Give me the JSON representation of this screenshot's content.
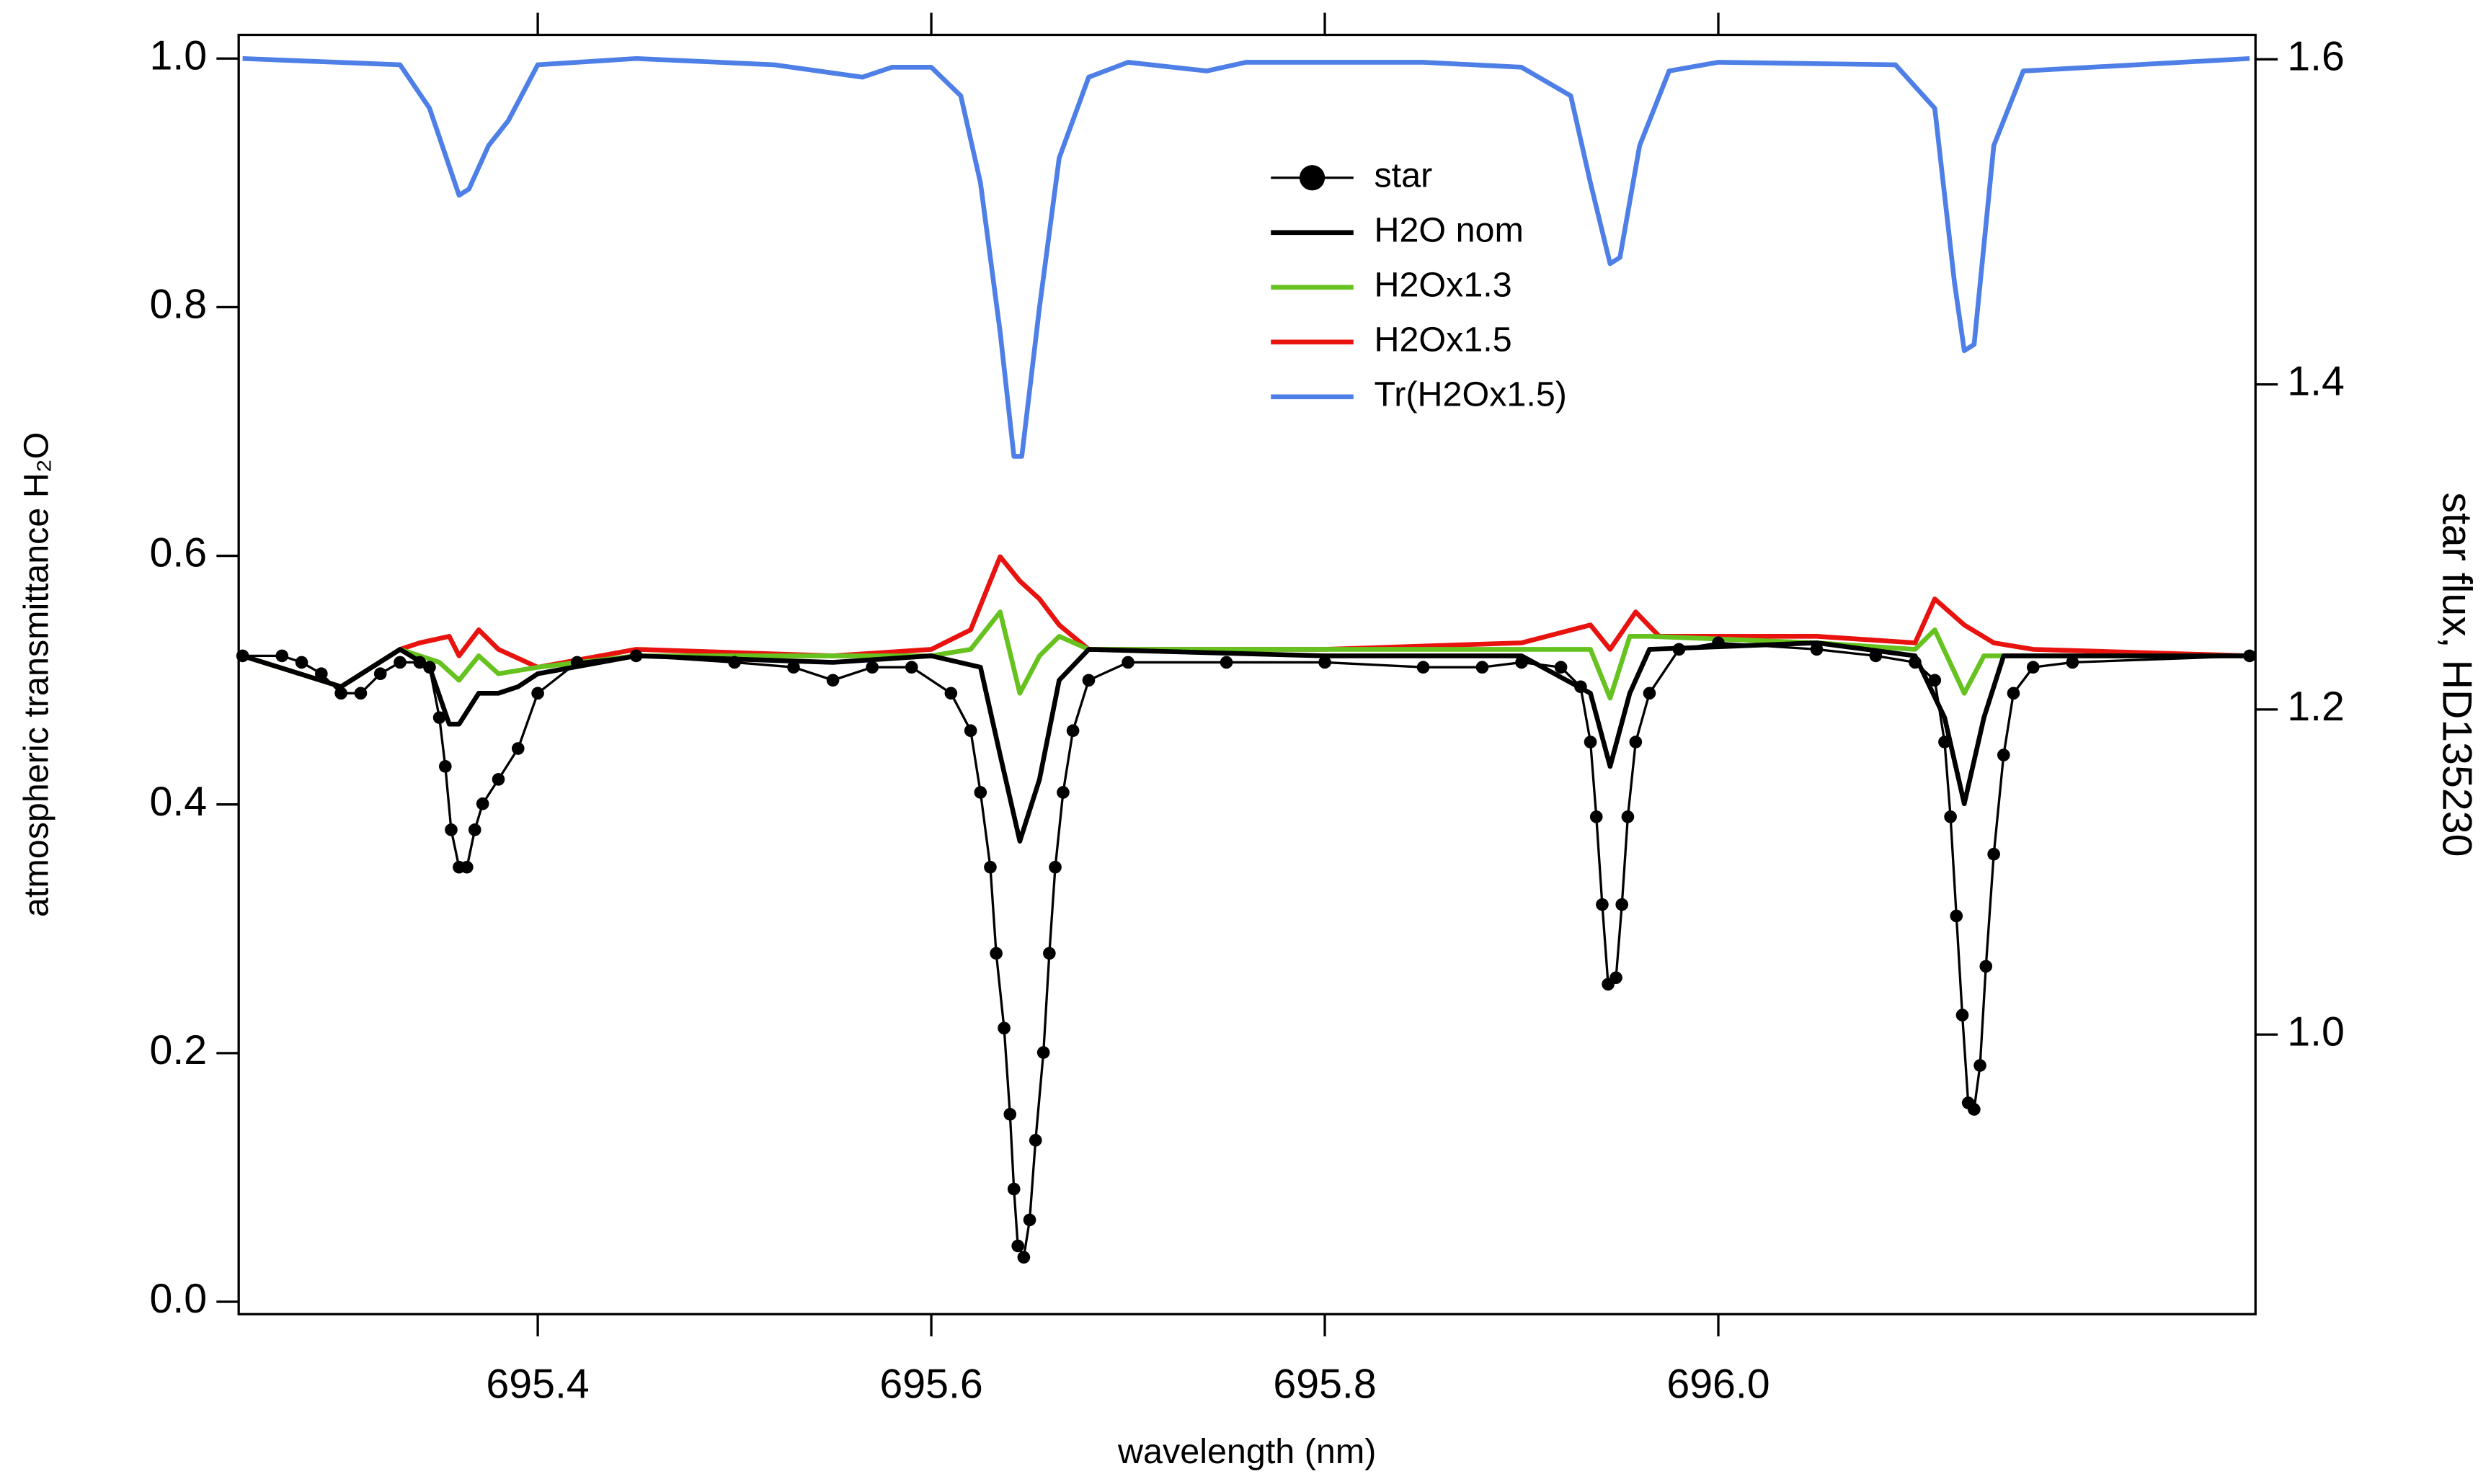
{
  "chart_data": {
    "type": "line",
    "xlabel": "wavelength (nm)",
    "ylabel": "atmospheric transmittance H₂O",
    "y2label": "star flux, HD135230",
    "xlim": [
      695.248,
      696.273
    ],
    "xticks": [
      695.4,
      695.6,
      695.8,
      {
        "value": 696.0,
        "label": "696.0"
      }
    ],
    "ylim": [
      -0.01,
      1.019
    ],
    "yticks": [
      {
        "value": 0,
        "label": "0.0"
      },
      0.2,
      0.4,
      0.6,
      0.8,
      {
        "value": 1,
        "label": "1.0"
      }
    ],
    "y2lim": [
      0.828,
      1.615
    ],
    "y2ticks": [
      {
        "value": 1,
        "label": "1.0"
      },
      1.2,
      1.4,
      1.6
    ],
    "grid": false,
    "series": [
      {
        "name": "star",
        "color": "#000000",
        "marker": "circle",
        "axis": "y2",
        "x": [
          695.25,
          695.27,
          695.28,
          695.29,
          695.3,
          695.31,
          695.32,
          695.33,
          695.34,
          695.345,
          695.35,
          695.353,
          695.356,
          695.36,
          695.364,
          695.368,
          695.372,
          695.38,
          695.39,
          695.4,
          695.42,
          695.45,
          695.5,
          695.53,
          695.55,
          695.57,
          695.59,
          695.61,
          695.62,
          695.625,
          695.63,
          695.633,
          695.637,
          695.64,
          695.642,
          695.644,
          695.647,
          695.65,
          695.653,
          695.657,
          695.66,
          695.663,
          695.667,
          695.672,
          695.68,
          695.7,
          695.75,
          695.8,
          695.85,
          695.88,
          695.9,
          695.92,
          695.93,
          695.935,
          695.938,
          695.941,
          695.944,
          695.948,
          695.951,
          695.954,
          695.958,
          695.965,
          695.98,
          696.0,
          696.05,
          696.08,
          696.1,
          696.11,
          696.115,
          696.118,
          696.121,
          696.124,
          696.127,
          696.13,
          696.133,
          696.136,
          696.14,
          696.145,
          696.15,
          696.16,
          696.18,
          696.27
        ],
        "values": [
          1.233,
          1.233,
          1.229,
          1.222,
          1.21,
          1.21,
          1.222,
          1.229,
          1.229,
          1.226,
          1.195,
          1.165,
          1.126,
          1.103,
          1.103,
          1.126,
          1.142,
          1.157,
          1.176,
          1.21,
          1.229,
          1.233,
          1.229,
          1.226,
          1.218,
          1.226,
          1.226,
          1.21,
          1.187,
          1.149,
          1.103,
          1.05,
          1.004,
          0.951,
          0.905,
          0.87,
          0.863,
          0.886,
          0.935,
          0.989,
          1.05,
          1.103,
          1.149,
          1.187,
          1.218,
          1.229,
          1.229,
          1.229,
          1.226,
          1.226,
          1.229,
          1.226,
          1.214,
          1.18,
          1.134,
          1.08,
          1.031,
          1.035,
          1.08,
          1.134,
          1.18,
          1.21,
          1.237,
          1.241,
          1.237,
          1.233,
          1.229,
          1.218,
          1.18,
          1.134,
          1.073,
          1.012,
          0.958,
          0.954,
          0.981,
          1.042,
          1.111,
          1.172,
          1.21,
          1.226,
          1.229,
          1.233
        ]
      },
      {
        "name": "H2O nom",
        "color": "#000000",
        "axis": "y2",
        "x": [
          695.25,
          695.3,
          695.33,
          695.345,
          695.355,
          695.36,
          695.37,
          695.38,
          695.39,
          695.4,
          695.45,
          695.55,
          695.6,
          695.625,
          695.635,
          695.645,
          695.655,
          695.665,
          695.68,
          695.8,
          695.9,
          695.935,
          695.945,
          695.955,
          695.965,
          696.05,
          696.1,
          696.115,
          696.125,
          696.135,
          696.145,
          696.27
        ],
        "values": [
          1.233,
          1.214,
          1.237,
          1.226,
          1.191,
          1.191,
          1.21,
          1.21,
          1.214,
          1.222,
          1.233,
          1.229,
          1.233,
          1.226,
          1.172,
          1.119,
          1.157,
          1.218,
          1.237,
          1.233,
          1.233,
          1.21,
          1.165,
          1.21,
          1.237,
          1.241,
          1.233,
          1.195,
          1.142,
          1.195,
          1.233,
          1.233
        ]
      },
      {
        "name": "H2Ox1.3",
        "color": "#66c21e",
        "axis": "y2",
        "x": [
          695.25,
          695.3,
          695.33,
          695.35,
          695.36,
          695.37,
          695.38,
          695.4,
          695.45,
          695.55,
          695.6,
          695.62,
          695.635,
          695.645,
          695.655,
          695.665,
          695.68,
          695.8,
          695.9,
          695.935,
          695.945,
          695.955,
          695.965,
          696.05,
          696.1,
          696.11,
          696.125,
          696.135,
          696.15,
          696.27
        ],
        "values": [
          1.233,
          1.214,
          1.237,
          1.229,
          1.218,
          1.233,
          1.222,
          1.226,
          1.233,
          1.233,
          1.233,
          1.237,
          1.26,
          1.21,
          1.233,
          1.245,
          1.237,
          1.237,
          1.237,
          1.237,
          1.207,
          1.245,
          1.245,
          1.241,
          1.237,
          1.249,
          1.21,
          1.233,
          1.233,
          1.233
        ]
      },
      {
        "name": "H2Ox1.5",
        "color": "#e8120e",
        "axis": "y2",
        "x": [
          695.25,
          695.3,
          695.33,
          695.34,
          695.355,
          695.36,
          695.37,
          695.38,
          695.4,
          695.45,
          695.55,
          695.6,
          695.62,
          695.635,
          695.645,
          695.655,
          695.665,
          695.68,
          695.8,
          695.9,
          695.935,
          695.945,
          695.958,
          695.97,
          696.05,
          696.1,
          696.11,
          696.125,
          696.14,
          696.16,
          696.27
        ],
        "values": [
          1.233,
          1.214,
          1.237,
          1.241,
          1.245,
          1.233,
          1.249,
          1.237,
          1.226,
          1.237,
          1.233,
          1.237,
          1.249,
          1.294,
          1.279,
          1.268,
          1.252,
          1.237,
          1.237,
          1.241,
          1.252,
          1.237,
          1.26,
          1.245,
          1.245,
          1.241,
          1.268,
          1.252,
          1.241,
          1.237,
          1.233
        ]
      },
      {
        "name": "Tr(H2Ox1.5)",
        "color": "#4e7fe6",
        "x": [
          695.25,
          695.33,
          695.345,
          695.36,
          695.365,
          695.375,
          695.385,
          695.4,
          695.45,
          695.52,
          695.565,
          695.58,
          695.6,
          695.615,
          695.625,
          695.635,
          695.642,
          695.646,
          695.655,
          695.665,
          695.68,
          695.7,
          695.74,
          695.76,
          695.85,
          695.9,
          695.925,
          695.935,
          695.945,
          695.95,
          695.96,
          695.975,
          696.0,
          696.09,
          696.11,
          696.12,
          696.125,
          696.13,
          696.14,
          696.155,
          696.27
        ],
        "values": [
          1.0,
          0.995,
          0.96,
          0.89,
          0.895,
          0.93,
          0.95,
          0.995,
          1.0,
          0.995,
          0.985,
          0.993,
          0.993,
          0.97,
          0.9,
          0.78,
          0.68,
          0.68,
          0.8,
          0.92,
          0.985,
          0.997,
          0.99,
          0.997,
          0.997,
          0.993,
          0.97,
          0.9,
          0.835,
          0.84,
          0.93,
          0.99,
          0.997,
          0.995,
          0.96,
          0.82,
          0.765,
          0.77,
          0.93,
          0.99,
          1.0
        ]
      }
    ]
  }
}
